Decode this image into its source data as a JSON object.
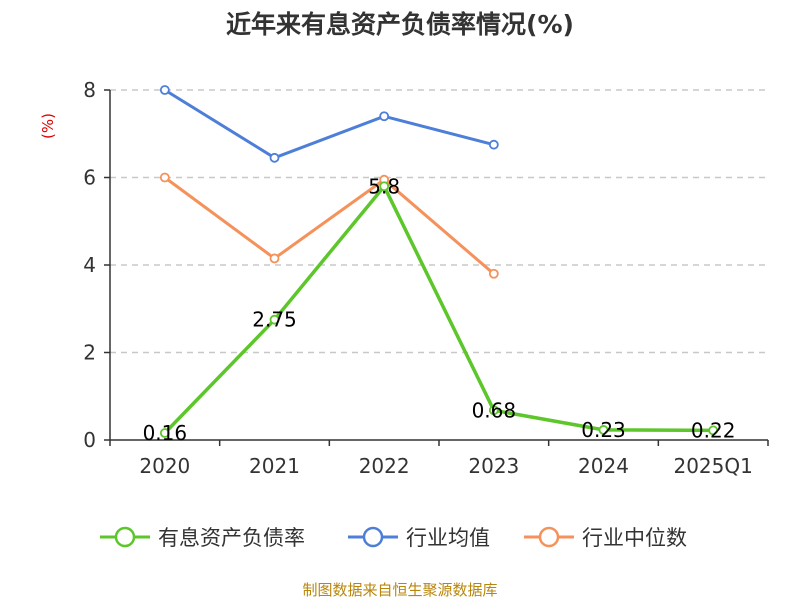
{
  "chart_data": {
    "type": "line",
    "title": "近年来有息资产负债率情况(%)",
    "xlabel": "",
    "ylabel": "(%)",
    "categories": [
      "2020",
      "2021",
      "2022",
      "2023",
      "2024",
      "2025Q1"
    ],
    "ylim": [
      0,
      8
    ],
    "yticks": [
      0,
      2,
      4,
      6,
      8
    ],
    "grid": true,
    "legend_position": "bottom",
    "series": [
      {
        "name": "有息资产负债率",
        "color": "#5cc62a",
        "values": [
          0.16,
          2.75,
          5.8,
          0.68,
          0.23,
          0.22
        ],
        "labels": [
          "0.16",
          "2.75",
          "5.8",
          "0.68",
          "0.23",
          "0.22"
        ]
      },
      {
        "name": "行业均值",
        "color": "#4d7fd9",
        "values": [
          8.0,
          6.45,
          7.4,
          6.75,
          null,
          null
        ],
        "labels": []
      },
      {
        "name": "行业中位数",
        "color": "#f5915a",
        "values": [
          6.0,
          4.15,
          5.95,
          3.8,
          null,
          null
        ],
        "labels": []
      }
    ]
  },
  "source": "制图数据来自恒生聚源数据库"
}
